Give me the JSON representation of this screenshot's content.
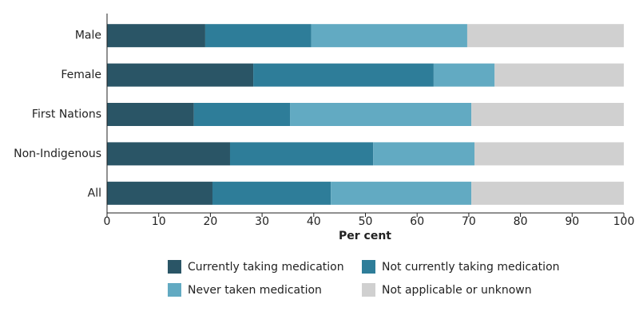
{
  "chart_data": {
    "type": "stacked-bar-horizontal",
    "x_label": "Per cent",
    "categories": [
      "Male",
      "Female",
      "First Nations",
      "Non-Indigenous",
      "All"
    ],
    "series": [
      {
        "name": "Currently taking medication",
        "color": "#2a5566",
        "values": [
          19,
          28.3,
          16.8,
          23.8,
          20.4
        ]
      },
      {
        "name": "Not currently taking medication",
        "color": "#2e7d99",
        "values": [
          20.5,
          34.9,
          18.6,
          27.7,
          22.9
        ]
      },
      {
        "name": "Never taken medication",
        "color": "#62aac2",
        "values": [
          30.2,
          11.8,
          35.1,
          19.6,
          27.2
        ]
      },
      {
        "name": "Not applicable or unknown",
        "color": "#d0d0d0",
        "values": [
          30.3,
          25.0,
          29.5,
          28.9,
          29.5
        ]
      }
    ],
    "xlim": [
      0,
      100
    ],
    "xticks": [
      0,
      10,
      20,
      30,
      40,
      50,
      60,
      70,
      80,
      90,
      100
    ],
    "legend": "bottom"
  }
}
